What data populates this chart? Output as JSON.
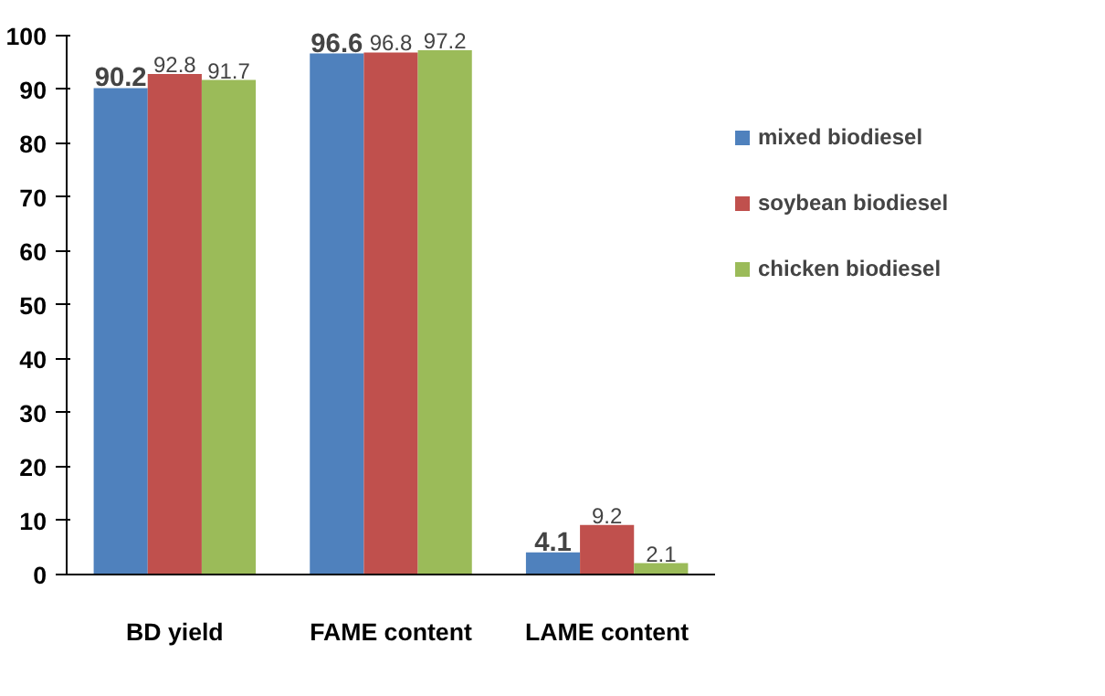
{
  "chart_data": {
    "type": "bar",
    "categories": [
      "BD yield",
      "FAME content",
      "LAME content"
    ],
    "series": [
      {
        "name": "mixed biodiesel",
        "color": "#4f81bd",
        "values": [
          90.2,
          96.6,
          4.1
        ]
      },
      {
        "name": "soybean biodiesel",
        "color": "#c0504d",
        "values": [
          92.8,
          96.8,
          9.2
        ]
      },
      {
        "name": "chicken biodiesel",
        "color": "#9bbb59",
        "values": [
          91.7,
          97.2,
          2.1
        ]
      }
    ],
    "ylim": [
      0,
      100
    ],
    "yticks": [
      0,
      10,
      20,
      30,
      40,
      50,
      60,
      70,
      80,
      90,
      100
    ],
    "grid": false,
    "legend": "right",
    "data_labels": true
  }
}
